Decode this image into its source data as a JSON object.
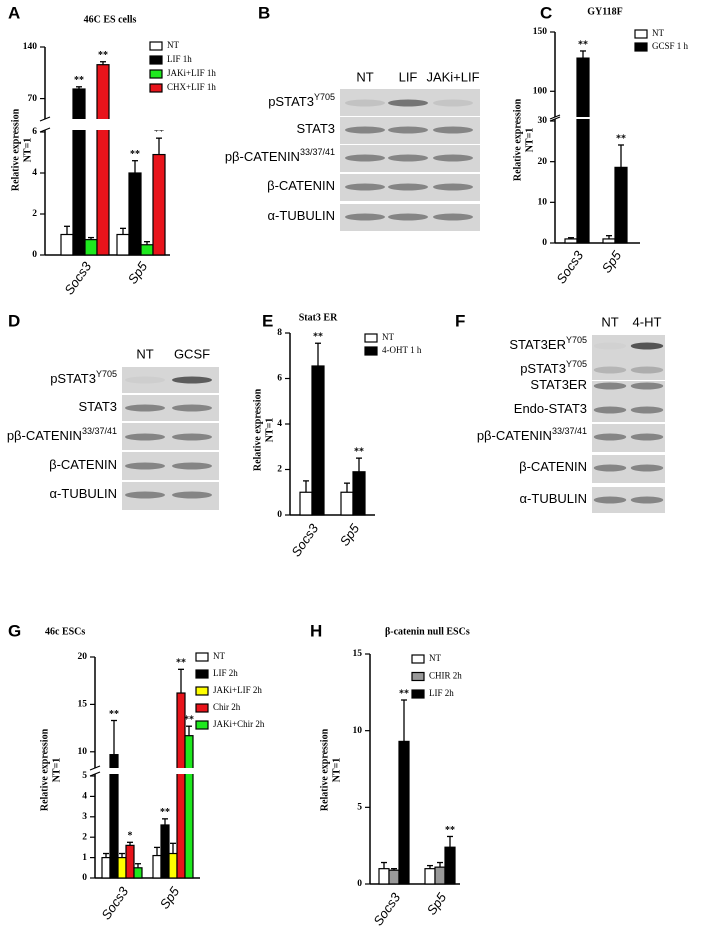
{
  "panel_labels": [
    "A",
    "B",
    "C",
    "D",
    "E",
    "F",
    "G",
    "H"
  ],
  "chart_data": [
    {
      "type": "bar",
      "title": "46C ES cells",
      "ylabel": [
        "Relative expression",
        "NT=1"
      ],
      "categories": [
        "Socs3",
        "Sp5"
      ],
      "ysegments": [
        {
          "ylim": [
            0,
            6
          ],
          "yticks": [
            0,
            2,
            4,
            6
          ]
        },
        {
          "ylim": [
            45,
            140
          ],
          "yticks": [
            70,
            140
          ]
        }
      ],
      "series": [
        {
          "name": "NT",
          "color": "#ffffff",
          "values": [
            1.0,
            1.0
          ],
          "errors": [
            0.4,
            0.3
          ],
          "significance": [
            null,
            null
          ]
        },
        {
          "name": "LIF 1h",
          "color": "#000000",
          "values": [
            83,
            4.0
          ],
          "errors": [
            3,
            0.6
          ],
          "significance": [
            "**",
            "**"
          ]
        },
        {
          "name": "JAKi+LIF 1h",
          "color": "#1ee81e",
          "values": [
            0.75,
            0.5
          ],
          "errors": [
            0.1,
            0.15
          ],
          "significance": [
            null,
            null
          ]
        },
        {
          "name": "CHX+LIF 1h",
          "color": "#e8141b",
          "values": [
            116,
            4.9
          ],
          "errors": [
            4,
            0.8
          ],
          "significance": [
            "**",
            "**"
          ]
        }
      ]
    },
    {
      "type": "bar",
      "title": "GY118F",
      "ylabel": [
        "Relative expression",
        "NT=1"
      ],
      "categories": [
        "Socs3",
        "Sp5"
      ],
      "ysegments": [
        {
          "ylim": [
            0,
            30
          ],
          "yticks": [
            0,
            10,
            20,
            30
          ]
        },
        {
          "ylim": [
            80,
            150
          ],
          "yticks": [
            100,
            150
          ]
        }
      ],
      "series": [
        {
          "name": "NT",
          "color": "#ffffff",
          "values": [
            1.0,
            1.0
          ],
          "errors": [
            0.3,
            0.8
          ],
          "significance": [
            null,
            null
          ]
        },
        {
          "name": "GCSF 1 h",
          "color": "#000000",
          "values": [
            128,
            18.6
          ],
          "errors": [
            6,
            5.5
          ],
          "significance": [
            "**",
            "**"
          ]
        }
      ]
    },
    {
      "type": "bar",
      "title": "Stat3 ER",
      "ylabel": [
        "Relative expression",
        "NT=1"
      ],
      "categories": [
        "Socs3",
        "Sp5"
      ],
      "ylim": [
        0,
        8
      ],
      "yticks": [
        0,
        2,
        4,
        6,
        8
      ],
      "series": [
        {
          "name": "NT",
          "color": "#ffffff",
          "values": [
            1.0,
            1.0
          ],
          "errors": [
            0.5,
            0.4
          ],
          "significance": [
            null,
            null
          ]
        },
        {
          "name": "4-OHT 1 h",
          "color": "#000000",
          "values": [
            6.55,
            1.9
          ],
          "errors": [
            1.0,
            0.6
          ],
          "significance": [
            "**",
            "**"
          ]
        }
      ]
    },
    {
      "type": "bar",
      "title": "46c ESCs",
      "ylabel": [
        "Relative expression",
        "NT=1"
      ],
      "categories": [
        "Socs3",
        "Sp5"
      ],
      "ysegments": [
        {
          "ylim": [
            0,
            5
          ],
          "yticks": [
            0,
            1,
            2,
            3,
            4,
            5
          ]
        },
        {
          "ylim": [
            8.5,
            20
          ],
          "yticks": [
            10,
            15,
            20
          ]
        }
      ],
      "series": [
        {
          "name": "NT",
          "color": "#ffffff",
          "values": [
            1.0,
            1.1
          ],
          "errors": [
            0.2,
            0.4
          ],
          "significance": [
            null,
            null
          ]
        },
        {
          "name": "LIF 2h",
          "color": "#000000",
          "values": [
            9.7,
            2.6
          ],
          "errors": [
            3.6,
            0.3
          ],
          "significance": [
            "**",
            "**"
          ]
        },
        {
          "name": "JAKi+LIF 2h",
          "color": "#ffff00",
          "values": [
            1.0,
            1.2
          ],
          "errors": [
            0.2,
            0.5
          ],
          "significance": [
            null,
            null
          ]
        },
        {
          "name": "Chir 2h",
          "color": "#e8141b",
          "values": [
            1.6,
            16.2
          ],
          "errors": [
            0.15,
            2.5
          ],
          "significance": [
            "*",
            "**"
          ]
        },
        {
          "name": "JAKi+Chir 2h",
          "color": "#1ee81e",
          "values": [
            0.5,
            11.7
          ],
          "errors": [
            0.2,
            1.0
          ],
          "significance": [
            null,
            "**"
          ]
        }
      ]
    },
    {
      "type": "bar",
      "title": "β-catenin null ESCs",
      "ylabel": [
        "Relative expression",
        "NT=1"
      ],
      "categories": [
        "Socs3",
        "Sp5"
      ],
      "ylim": [
        0,
        15
      ],
      "yticks": [
        0,
        5,
        10,
        15
      ],
      "series": [
        {
          "name": "NT",
          "color": "#ffffff",
          "values": [
            1.0,
            1.0
          ],
          "errors": [
            0.4,
            0.2
          ],
          "significance": [
            null,
            null
          ]
        },
        {
          "name": "CHIR 2h",
          "color": "#999999",
          "values": [
            0.9,
            1.1
          ],
          "errors": [
            0.1,
            0.3
          ],
          "significance": [
            null,
            null
          ]
        },
        {
          "name": "LIF 2h",
          "color": "#000000",
          "values": [
            9.3,
            2.4
          ],
          "errors": [
            2.7,
            0.7
          ],
          "significance": [
            "**",
            "**"
          ]
        }
      ]
    }
  ],
  "blots": [
    {
      "columns": [
        "NT",
        "LIF",
        "JAKi+LIF"
      ],
      "rows": [
        {
          "label": "pSTAT3",
          "sup": "Y705"
        },
        {
          "label": "STAT3",
          "sup": null
        },
        {
          "label": "pβ-CATENIN",
          "sup": "33/37/41"
        },
        {
          "label": "β-CATENIN",
          "sup": null
        },
        {
          "label": "α-TUBULIN",
          "sup": null
        }
      ]
    },
    {
      "columns": [
        "NT",
        "GCSF"
      ],
      "rows": [
        {
          "label": "pSTAT3",
          "sup": "Y705"
        },
        {
          "label": "STAT3",
          "sup": null
        },
        {
          "label": "pβ-CATENIN",
          "sup": "33/37/41"
        },
        {
          "label": "β-CATENIN",
          "sup": null
        },
        {
          "label": "α-TUBULIN",
          "sup": null
        }
      ]
    },
    {
      "columns": [
        "NT",
        "4-HT"
      ],
      "rows": [
        {
          "label": "STAT3ER",
          "sup": "Y705"
        },
        {
          "label": "pSTAT3",
          "sup": "Y705"
        },
        {
          "label": "STAT3ER",
          "sup": null
        },
        {
          "label": "Endo-STAT3",
          "sup": null
        },
        {
          "label": "pβ-CATENIN",
          "sup": "33/37/41"
        },
        {
          "label": "β-CATENIN",
          "sup": null
        },
        {
          "label": "α-TUBULIN",
          "sup": null
        }
      ]
    }
  ]
}
